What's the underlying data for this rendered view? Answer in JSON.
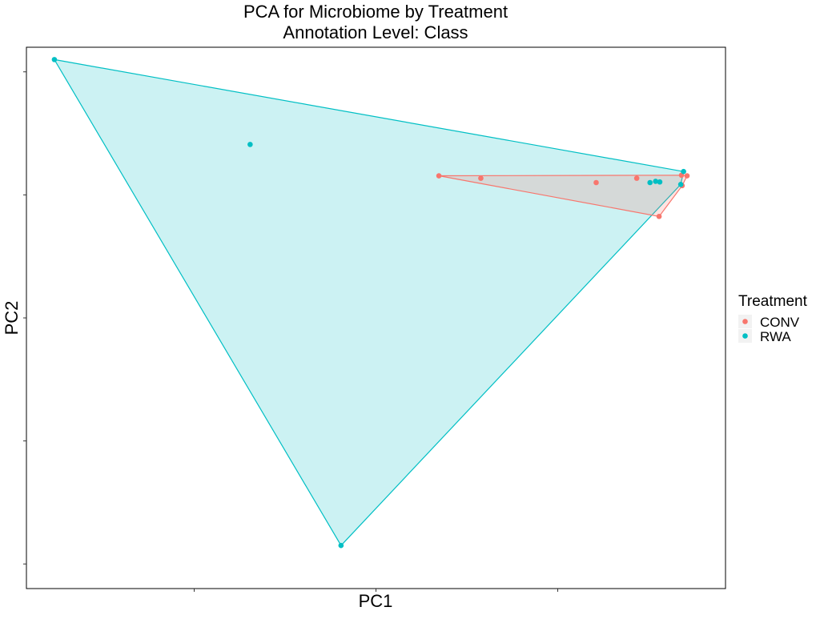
{
  "chart_data": {
    "type": "scatter",
    "title": "PCA for Microbiome by Treatment",
    "subtitle": "Annotation Level: Class",
    "xlabel": "PC1",
    "ylabel": "PC2",
    "xlim": [
      -4.2,
      5.8
    ],
    "ylim": [
      -4.4,
      4.4
    ],
    "x_ticks": [
      -1.8,
      0.8,
      3.4
    ],
    "y_ticks": [
      -4.0,
      -2.0,
      0.0,
      2.0,
      4.0
    ],
    "grid": false,
    "hull": true,
    "legend": {
      "title": "Treatment",
      "placement": "right",
      "entries": [
        "CONV",
        "RWA"
      ]
    },
    "series": [
      {
        "name": "CONV",
        "color": "#F8766D",
        "points": [
          {
            "x": 1.7,
            "y": 2.31
          },
          {
            "x": 2.3,
            "y": 2.27
          },
          {
            "x": 3.95,
            "y": 2.2
          },
          {
            "x": 4.53,
            "y": 2.27
          },
          {
            "x": 4.85,
            "y": 1.65
          },
          {
            "x": 5.17,
            "y": 2.32
          },
          {
            "x": 5.18,
            "y": 2.15
          },
          {
            "x": 5.25,
            "y": 2.31
          }
        ]
      },
      {
        "name": "RWA",
        "color": "#00BFC4",
        "points": [
          {
            "x": -3.8,
            "y": 4.2
          },
          {
            "x": -1.0,
            "y": 2.82
          },
          {
            "x": 0.3,
            "y": -3.7
          },
          {
            "x": 4.72,
            "y": 2.2
          },
          {
            "x": 4.8,
            "y": 2.22
          },
          {
            "x": 4.86,
            "y": 2.21
          },
          {
            "x": 5.16,
            "y": 2.17
          },
          {
            "x": 5.2,
            "y": 2.38
          }
        ]
      }
    ]
  }
}
